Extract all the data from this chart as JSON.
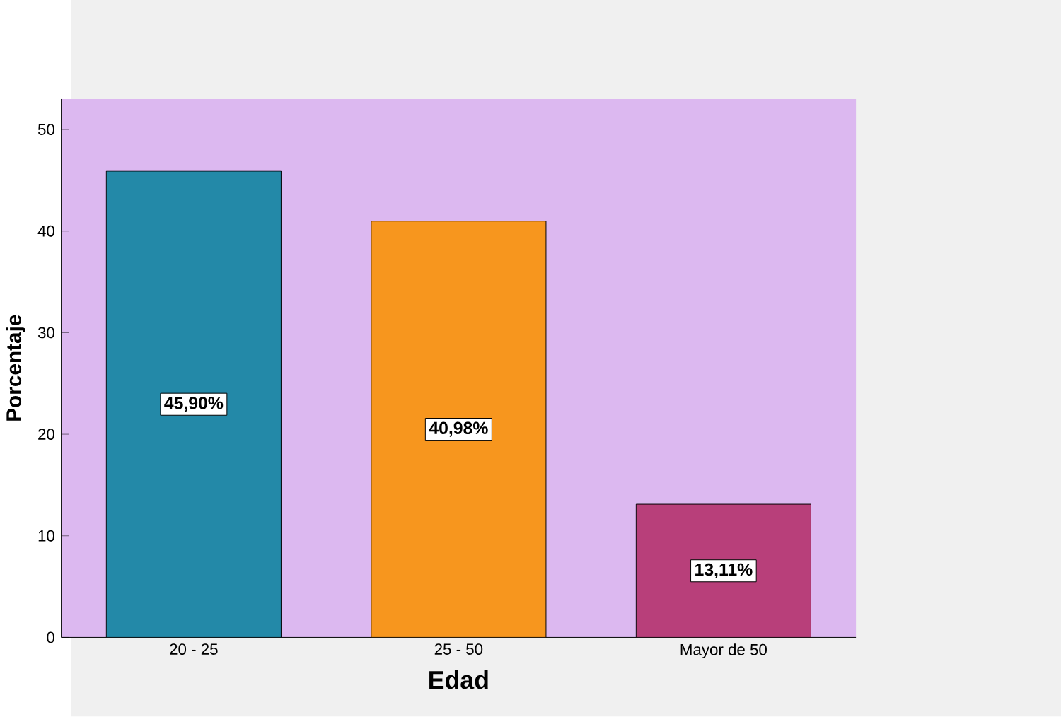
{
  "chart_data": {
    "type": "bar",
    "xlabel": "Edad",
    "ylabel": "Porcentaje",
    "categories": [
      "20 - 25",
      "25 - 50",
      "Mayor de 50"
    ],
    "values": [
      45.9,
      40.98,
      13.11
    ],
    "colors": [
      "#2389a8",
      "#f7961e",
      "#b83f7a"
    ],
    "value_labels": [
      "45,90%",
      "40,98%",
      "13,11%"
    ],
    "ylim": [
      0,
      53
    ],
    "yticks": [
      0,
      10,
      20,
      30,
      40,
      50
    ]
  }
}
